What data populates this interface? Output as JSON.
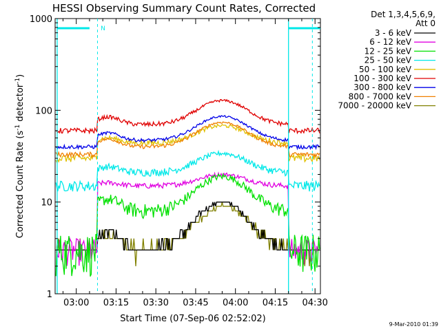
{
  "chart_data": {
    "type": "line",
    "title": "HESSI Observing Summary Count Rates, Corrected",
    "xlabel": "Start Time (07-Sep-06 02:52:02)",
    "ylabel_main": "Corrected Count Rate (s",
    "ylabel_sup1": "-1",
    "ylabel_mid": " detector",
    "ylabel_sup2": "-1",
    "ylabel_end": ")",
    "x_ticks": [
      "03:00",
      "03:15",
      "03:30",
      "03:45",
      "04:00",
      "04:15",
      "04:30"
    ],
    "x_tick_minutes": [
      0,
      15,
      30,
      45,
      60,
      75,
      90
    ],
    "xlim_minutes": [
      -7.97,
      92.03
    ],
    "y_scale": "log",
    "ylim": [
      1,
      1000
    ],
    "y_ticks": [
      "1",
      "10",
      "100",
      "1000"
    ],
    "y_tick_values": [
      1,
      10,
      100,
      1000
    ],
    "legend_title_1": "Det 1,3,4,5,6,9,",
    "legend_title_2": "Att 0",
    "legend_placement": "right",
    "timestamp": "9-Mar-2010 01:39",
    "annotation_marker": "N",
    "day_minutes": [
      8,
      21
    ],
    "series": [
      {
        "name": "3 - 6 keV",
        "color": "#000000",
        "night": 3,
        "day_min": 3,
        "peak": 10,
        "noise": 0.5,
        "steps": true
      },
      {
        "name": "6 - 12 keV",
        "color": "#e000e0",
        "night": 3,
        "day_min": 15,
        "peak": 20,
        "noise": 1.0
      },
      {
        "name": "12 - 25 keV",
        "color": "#00e000",
        "night": 3,
        "day_min": 8,
        "peak": 19,
        "noise": 1.5
      },
      {
        "name": "25 - 50 keV",
        "color": "#00e8e8",
        "night": 15,
        "day_min": 21,
        "peak": 34,
        "noise": 2.0
      },
      {
        "name": "50 - 100 keV",
        "color": "#e0c000",
        "night": 30,
        "day_min": 44,
        "peak": 68,
        "noise": 3.0
      },
      {
        "name": "100 - 300 keV",
        "color": "#e00000",
        "night": 60,
        "day_min": 70,
        "peak": 128,
        "noise": 4.0
      },
      {
        "name": "300 - 800 keV",
        "color": "#0000e8",
        "night": 40,
        "day_min": 47,
        "peak": 86,
        "noise": 2.0
      },
      {
        "name": "800 - 7000 keV",
        "color": "#f08000",
        "night": 33,
        "day_min": 40,
        "peak": 74,
        "noise": 2.0
      },
      {
        "name": "7000 - 20000 keV",
        "color": "#808000",
        "night": 3,
        "day_min": 3,
        "peak": 9,
        "noise": 0.6,
        "steps": true
      }
    ]
  }
}
